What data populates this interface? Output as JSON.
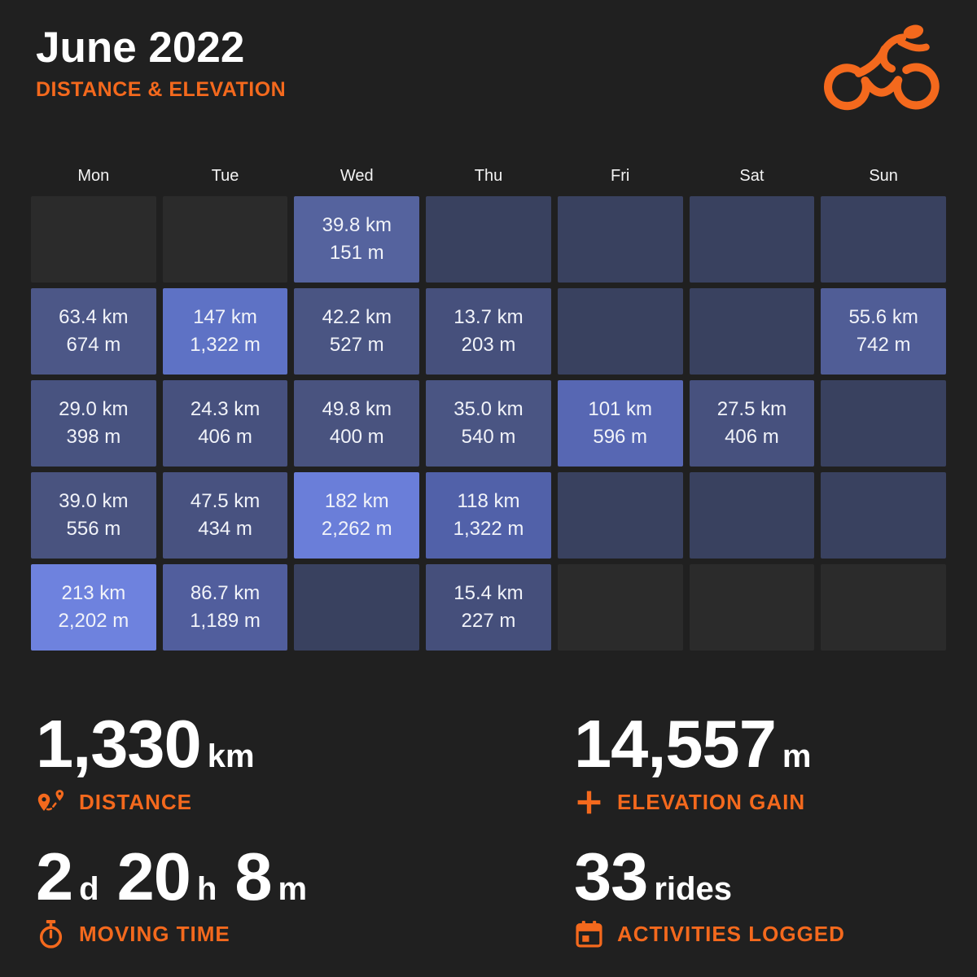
{
  "header": {
    "title": "June 2022",
    "subtitle": "DISTANCE & ELEVATION",
    "logo_icon": "cyclist-icon"
  },
  "colors": {
    "background": "#202020",
    "accent": "#f4691d",
    "rest_day": "#39415f",
    "outside_month": "#2b2b2b",
    "cell_text": "#f1f3f9"
  },
  "calendar": {
    "weekdays": [
      "Mon",
      "Tue",
      "Wed",
      "Thu",
      "Fri",
      "Sat",
      "Sun"
    ],
    "cells": [
      {
        "type": "outside"
      },
      {
        "type": "outside"
      },
      {
        "type": "ride",
        "distance": "39.8 km",
        "elevation": "151 m",
        "color": "#55639e"
      },
      {
        "type": "rest"
      },
      {
        "type": "rest"
      },
      {
        "type": "rest"
      },
      {
        "type": "rest"
      },
      {
        "type": "ride",
        "distance": "63.4 km",
        "elevation": "674 m",
        "color": "#4c5787"
      },
      {
        "type": "ride",
        "distance": "147 km",
        "elevation": "1,322 m",
        "color": "#5e72c5"
      },
      {
        "type": "ride",
        "distance": "42.2 km",
        "elevation": "527 m",
        "color": "#4a5583"
      },
      {
        "type": "ride",
        "distance": "13.7 km",
        "elevation": "203 m",
        "color": "#46507c"
      },
      {
        "type": "rest"
      },
      {
        "type": "rest"
      },
      {
        "type": "ride",
        "distance": "55.6 km",
        "elevation": "742 m",
        "color": "#505d96"
      },
      {
        "type": "ride",
        "distance": "29.0 km",
        "elevation": "398 m",
        "color": "#485380"
      },
      {
        "type": "ride",
        "distance": "24.3 km",
        "elevation": "406 m",
        "color": "#47517e"
      },
      {
        "type": "ride",
        "distance": "49.8 km",
        "elevation": "400 m",
        "color": "#49537f"
      },
      {
        "type": "ride",
        "distance": "35.0 km",
        "elevation": "540 m",
        "color": "#4a5583"
      },
      {
        "type": "ride",
        "distance": "101 km",
        "elevation": "596 m",
        "color": "#5767b3"
      },
      {
        "type": "ride",
        "distance": "27.5 km",
        "elevation": "406 m",
        "color": "#47517e"
      },
      {
        "type": "rest"
      },
      {
        "type": "ride",
        "distance": "39.0 km",
        "elevation": "556 m",
        "color": "#49537f"
      },
      {
        "type": "ride",
        "distance": "47.5 km",
        "elevation": "434 m",
        "color": "#485280"
      },
      {
        "type": "ride",
        "distance": "182 km",
        "elevation": "2,262 m",
        "color": "#6a7ed9"
      },
      {
        "type": "ride",
        "distance": "118 km",
        "elevation": "1,322 m",
        "color": "#5161a9"
      },
      {
        "type": "rest"
      },
      {
        "type": "rest"
      },
      {
        "type": "rest"
      },
      {
        "type": "ride",
        "distance": "213 km",
        "elevation": "2,202 m",
        "color": "#6e82de"
      },
      {
        "type": "ride",
        "distance": "86.7 km",
        "elevation": "1,189 m",
        "color": "#515e9d"
      },
      {
        "type": "rest"
      },
      {
        "type": "ride",
        "distance": "15.4 km",
        "elevation": "227 m",
        "color": "#454f7b"
      },
      {
        "type": "outside"
      },
      {
        "type": "outside"
      },
      {
        "type": "outside"
      }
    ]
  },
  "stats": [
    {
      "id": "distance",
      "icon": "route-pin-icon",
      "label": "DISTANCE",
      "parts": [
        {
          "value": "1,330",
          "unit": "km"
        }
      ]
    },
    {
      "id": "elevation-gain",
      "icon": "plus-icon",
      "label": "ELEVATION GAIN",
      "parts": [
        {
          "value": "14,557",
          "unit": "m"
        }
      ]
    },
    {
      "id": "moving-time",
      "icon": "stopwatch-icon",
      "label": "MOVING TIME",
      "parts": [
        {
          "value": "2",
          "unit": "d"
        },
        {
          "value": "20",
          "unit": "h"
        },
        {
          "value": "8",
          "unit": "m"
        }
      ]
    },
    {
      "id": "activities",
      "icon": "calendar-icon",
      "label": "ACTIVITIES LOGGED",
      "parts": [
        {
          "value": "33",
          "unit": "rides"
        }
      ]
    }
  ],
  "chart_data": {
    "type": "heatmap",
    "subtype": "calendar-month",
    "title": "June 2022",
    "subtitle": "DISTANCE & ELEVATION",
    "columns": [
      "Mon",
      "Tue",
      "Wed",
      "Thu",
      "Fri",
      "Sat",
      "Sun"
    ],
    "weeks": [
      [
        null,
        null,
        {
          "distance_km": 39.8,
          "elevation_m": 151
        },
        {
          "distance_km": 0,
          "elevation_m": 0
        },
        {
          "distance_km": 0,
          "elevation_m": 0
        },
        {
          "distance_km": 0,
          "elevation_m": 0
        },
        {
          "distance_km": 0,
          "elevation_m": 0
        }
      ],
      [
        {
          "distance_km": 63.4,
          "elevation_m": 674
        },
        {
          "distance_km": 147,
          "elevation_m": 1322
        },
        {
          "distance_km": 42.2,
          "elevation_m": 527
        },
        {
          "distance_km": 13.7,
          "elevation_m": 203
        },
        {
          "distance_km": 0,
          "elevation_m": 0
        },
        {
          "distance_km": 0,
          "elevation_m": 0
        },
        {
          "distance_km": 55.6,
          "elevation_m": 742
        }
      ],
      [
        {
          "distance_km": 29.0,
          "elevation_m": 398
        },
        {
          "distance_km": 24.3,
          "elevation_m": 406
        },
        {
          "distance_km": 49.8,
          "elevation_m": 400
        },
        {
          "distance_km": 35.0,
          "elevation_m": 540
        },
        {
          "distance_km": 101,
          "elevation_m": 596
        },
        {
          "distance_km": 27.5,
          "elevation_m": 406
        },
        {
          "distance_km": 0,
          "elevation_m": 0
        }
      ],
      [
        {
          "distance_km": 39.0,
          "elevation_m": 556
        },
        {
          "distance_km": 47.5,
          "elevation_m": 434
        },
        {
          "distance_km": 182,
          "elevation_m": 2262
        },
        {
          "distance_km": 118,
          "elevation_m": 1322
        },
        {
          "distance_km": 0,
          "elevation_m": 0
        },
        {
          "distance_km": 0,
          "elevation_m": 0
        },
        {
          "distance_km": 0,
          "elevation_m": 0
        }
      ],
      [
        {
          "distance_km": 213,
          "elevation_m": 2202
        },
        {
          "distance_km": 86.7,
          "elevation_m": 1189
        },
        {
          "distance_km": 0,
          "elevation_m": 0
        },
        {
          "distance_km": 15.4,
          "elevation_m": 227
        },
        null,
        null,
        null
      ]
    ],
    "totals": {
      "distance_km": 1330,
      "elevation_gain_m": 14557,
      "moving_time": "2d 20h 8m",
      "rides": 33
    },
    "legend_position": "none",
    "grid": "calendar cells shaded blue by intensity; darker navy = no ride; dark gray = outside month"
  }
}
